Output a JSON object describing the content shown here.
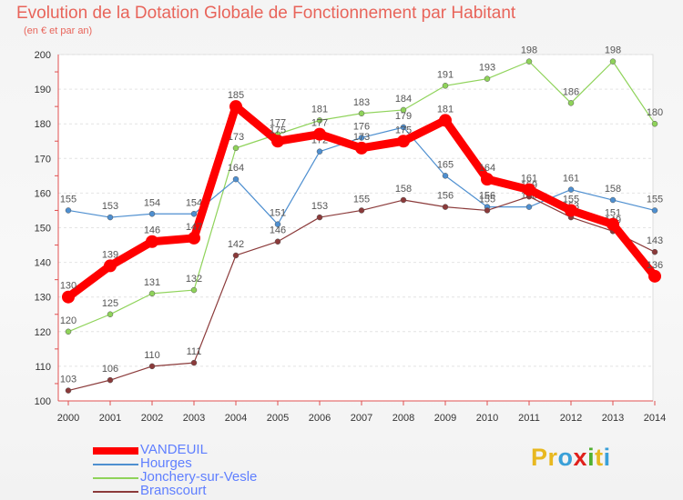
{
  "chart_data": {
    "type": "line",
    "title": "Evolution de la Dotation Globale de Fonctionnement par Habitant",
    "subtitle": "(en € et par an)",
    "xlabel": "",
    "ylabel": "",
    "ylim": [
      100,
      200
    ],
    "yticks": [
      100,
      110,
      120,
      130,
      140,
      150,
      160,
      170,
      180,
      190,
      200
    ],
    "categories": [
      "2000",
      "2001",
      "2002",
      "2003",
      "2004",
      "2005",
      "2006",
      "2007",
      "2008",
      "2009",
      "2010",
      "2011",
      "2012",
      "2013",
      "2014"
    ],
    "grid": true,
    "legend_position": "bottom-left",
    "series": [
      {
        "name": "VANDEUIL",
        "color": "#ff0000",
        "values": [
          130,
          139,
          146,
          147,
          185,
          175,
          177,
          173,
          175,
          181,
          164,
          161,
          155,
          151,
          136
        ],
        "labels": [
          "130",
          "139",
          "146",
          "147",
          "185",
          "175",
          "177",
          "173",
          "175",
          "181",
          "164",
          "161",
          "155",
          "151",
          "136"
        ]
      },
      {
        "name": "Hourges",
        "color": "#4e8fd0",
        "values": [
          155,
          153,
          154,
          154,
          164,
          151,
          172,
          176,
          179,
          165,
          156,
          156,
          161,
          158,
          155
        ],
        "labels": [
          "155",
          "153",
          "154",
          "154",
          "164",
          "151",
          "172",
          "176",
          "179",
          "165",
          "156",
          "156",
          "161",
          "158",
          "155"
        ]
      },
      {
        "name": "Jonchery-sur-Vesle",
        "color": "#8fd35a",
        "values": [
          120,
          125,
          131,
          132,
          173,
          177,
          181,
          183,
          184,
          191,
          193,
          198,
          186,
          198,
          180
        ],
        "labels": [
          "120",
          "125",
          "131",
          "132",
          "173",
          "177",
          "181",
          "183",
          "184",
          "191",
          "193",
          "198",
          "186",
          "198",
          "180"
        ]
      },
      {
        "name": "Branscourt",
        "color": "#8b3a3a",
        "values": [
          103,
          106,
          110,
          111,
          142,
          146,
          153,
          155,
          158,
          156,
          155,
          159,
          153,
          149,
          143
        ],
        "labels": [
          "103",
          "106",
          "110",
          "111",
          "142",
          "146",
          "153",
          "155",
          "158",
          "156",
          "155",
          "159",
          "153",
          "149",
          "143"
        ]
      }
    ]
  },
  "logo": {
    "text": "Proxiti",
    "colors": [
      "#e8b820",
      "#e8b820",
      "#3aa0d8",
      "#e0201b",
      "#50b030",
      "#e8b820",
      "#3aa0d8"
    ]
  }
}
